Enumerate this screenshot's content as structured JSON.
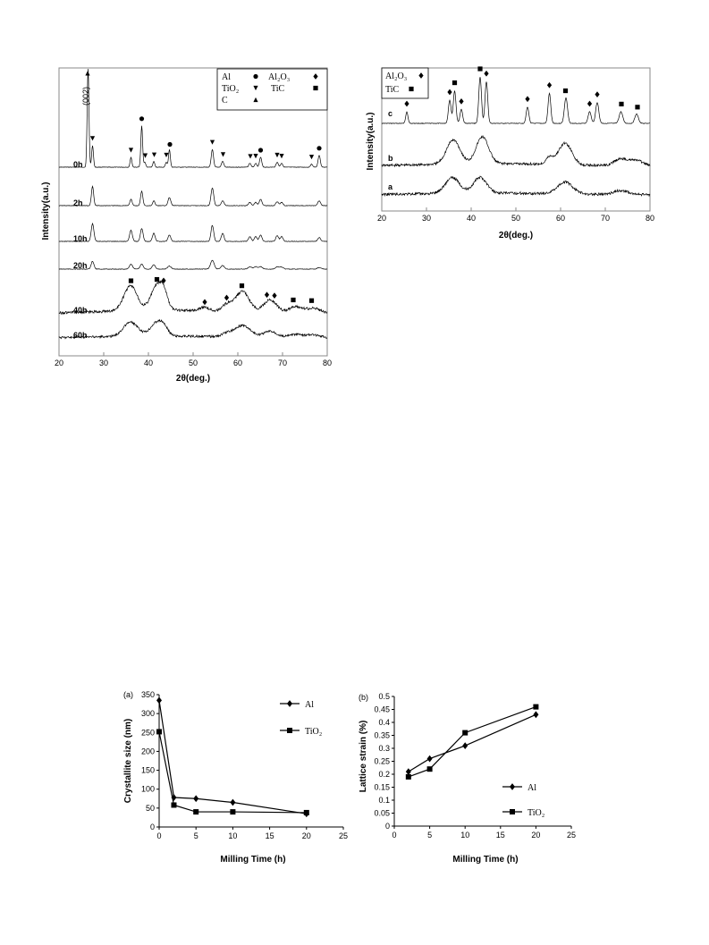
{
  "chart_data": [
    {
      "type": "line",
      "panel": "xrd-milling",
      "xlabel": "2θ(deg.)",
      "ylabel": "Intensity(a.u.)",
      "xlim": [
        20,
        80
      ],
      "xticks": [
        "20",
        "30",
        "40",
        "50",
        "60",
        "70",
        "80"
      ],
      "peak_annotation": "(002)",
      "legend": [
        {
          "label": "Al",
          "marker": "circle"
        },
        {
          "label": "Al₂O₃",
          "marker": "diamond"
        },
        {
          "label": "TiO₂",
          "marker": "triangle-down"
        },
        {
          "label": "TiC",
          "marker": "square"
        },
        {
          "label": "C",
          "marker": "triangle-up"
        }
      ],
      "patterns": [
        {
          "name": "0h",
          "peaks": [
            [
              26.5,
              1.0,
              0.2
            ],
            [
              27.5,
              0.22,
              0.2
            ],
            [
              36.1,
              0.1,
              0.2
            ],
            [
              38.5,
              0.42,
              0.2
            ],
            [
              39.2,
              0.05,
              0.2
            ],
            [
              41.2,
              0.06,
              0.2
            ],
            [
              44.0,
              0.05,
              0.2
            ],
            [
              44.7,
              0.18,
              0.2
            ],
            [
              54.3,
              0.18,
              0.25
            ],
            [
              56.6,
              0.06,
              0.25
            ],
            [
              62.7,
              0.04,
              0.25
            ],
            [
              64.0,
              0.04,
              0.25
            ],
            [
              65.1,
              0.1,
              0.25
            ],
            [
              68.8,
              0.05,
              0.25
            ],
            [
              69.8,
              0.04,
              0.25
            ],
            [
              76.5,
              0.03,
              0.25
            ],
            [
              78.2,
              0.12,
              0.25
            ]
          ],
          "markers": [
            [
              26.4,
              "C"
            ],
            [
              27.5,
              "TiO₂"
            ],
            [
              36.1,
              "TiO₂"
            ],
            [
              38.5,
              "Al"
            ],
            [
              39.3,
              "TiO₂"
            ],
            [
              41.3,
              "TiO₂"
            ],
            [
              44.0,
              "TiO₂"
            ],
            [
              44.8,
              "Al"
            ],
            [
              54.3,
              "TiO₂"
            ],
            [
              56.7,
              "TiO₂"
            ],
            [
              62.8,
              "TiO₂"
            ],
            [
              64.0,
              "TiO₂"
            ],
            [
              65.1,
              "Al"
            ],
            [
              68.8,
              "TiO₂"
            ],
            [
              69.8,
              "TiO₂"
            ],
            [
              76.5,
              "TiO₂"
            ],
            [
              78.2,
              "Al"
            ]
          ]
        },
        {
          "name": "2h",
          "peaks": [
            [
              27.5,
              0.6,
              0.25
            ],
            [
              36.1,
              0.2,
              0.25
            ],
            [
              38.5,
              0.45,
              0.25
            ],
            [
              41.2,
              0.15,
              0.25
            ],
            [
              44.7,
              0.25,
              0.3
            ],
            [
              54.3,
              0.55,
              0.3
            ],
            [
              56.6,
              0.15,
              0.3
            ],
            [
              62.7,
              0.1,
              0.3
            ],
            [
              64.0,
              0.1,
              0.3
            ],
            [
              65.1,
              0.2,
              0.3
            ],
            [
              68.8,
              0.12,
              0.3
            ],
            [
              69.8,
              0.1,
              0.3
            ],
            [
              78.2,
              0.15,
              0.3
            ]
          ]
        },
        {
          "name": "10h",
          "peaks": [
            [
              27.5,
              0.55,
              0.3
            ],
            [
              36.1,
              0.35,
              0.3
            ],
            [
              38.5,
              0.4,
              0.3
            ],
            [
              41.2,
              0.25,
              0.3
            ],
            [
              44.7,
              0.2,
              0.3
            ],
            [
              54.3,
              0.5,
              0.3
            ],
            [
              56.6,
              0.25,
              0.3
            ],
            [
              62.7,
              0.15,
              0.3
            ],
            [
              64.0,
              0.15,
              0.3
            ],
            [
              65.1,
              0.2,
              0.3
            ],
            [
              68.8,
              0.18,
              0.3
            ],
            [
              69.8,
              0.15,
              0.3
            ],
            [
              78.2,
              0.12,
              0.3
            ]
          ]
        },
        {
          "name": "20h",
          "peaks": [
            [
              27.5,
              0.4,
              0.3
            ],
            [
              36.1,
              0.25,
              0.35
            ],
            [
              38.5,
              0.25,
              0.35
            ],
            [
              41.2,
              0.22,
              0.35
            ],
            [
              44.7,
              0.15,
              0.4
            ],
            [
              54.3,
              0.45,
              0.4
            ],
            [
              56.6,
              0.18,
              0.4
            ],
            [
              62.7,
              0.12,
              0.4
            ],
            [
              64.0,
              0.12,
              0.4
            ],
            [
              65.1,
              0.12,
              0.4
            ],
            [
              68.8,
              0.12,
              0.4
            ],
            [
              69.8,
              0.1,
              0.4
            ],
            [
              78.2,
              0.08,
              0.4
            ]
          ]
        },
        {
          "name": "40h",
          "peaks": [
            [
              36.0,
              1.0,
              1.5
            ],
            [
              42.0,
              1.0,
              1.4
            ],
            [
              43.5,
              0.4,
              0.8
            ],
            [
              52.5,
              0.15,
              1.0
            ],
            [
              57.5,
              0.25,
              1.0
            ],
            [
              61.0,
              0.8,
              1.6
            ],
            [
              66.5,
              0.3,
              1.2
            ],
            [
              68.0,
              0.3,
              1.2
            ],
            [
              73.0,
              0.25,
              1.5
            ],
            [
              77.0,
              0.2,
              1.5
            ]
          ],
          "markers": [
            [
              36.1,
              "TiC"
            ],
            [
              41.9,
              "TiC"
            ],
            [
              43.4,
              "Al₂O₃"
            ],
            [
              52.6,
              "Al₂O₃"
            ],
            [
              57.5,
              "Al₂O₃"
            ],
            [
              60.9,
              "TiC"
            ],
            [
              66.5,
              "Al₂O₃"
            ],
            [
              68.2,
              "Al₂O₃"
            ],
            [
              72.4,
              "TiC"
            ],
            [
              76.5,
              "TiC"
            ]
          ]
        },
        {
          "name": "60h",
          "peaks": [
            [
              36.0,
              1.0,
              1.6
            ],
            [
              42.0,
              1.0,
              1.5
            ],
            [
              43.5,
              0.3,
              0.8
            ],
            [
              57.5,
              0.2,
              1.0
            ],
            [
              61.0,
              0.8,
              1.8
            ],
            [
              66.5,
              0.25,
              1.2
            ],
            [
              68.0,
              0.25,
              1.2
            ],
            [
              73.0,
              0.2,
              1.6
            ],
            [
              77.0,
              0.18,
              1.6
            ]
          ]
        }
      ]
    },
    {
      "type": "line",
      "panel": "xrd-comparison",
      "xlabel": "2θ(deg.)",
      "ylabel": "Intensity(a.u.)",
      "xlim": [
        20,
        80
      ],
      "xticks": [
        "20",
        "30",
        "40",
        "50",
        "60",
        "70",
        "80"
      ],
      "legend": [
        {
          "label": "Al₂O₃",
          "marker": "diamond"
        },
        {
          "label": "TiC",
          "marker": "square"
        }
      ],
      "patterns": [
        {
          "name": "c",
          "peaks": [
            [
              25.6,
              0.25,
              0.25
            ],
            [
              35.2,
              0.5,
              0.3
            ],
            [
              36.3,
              0.7,
              0.3
            ],
            [
              37.8,
              0.3,
              0.3
            ],
            [
              42.0,
              1.0,
              0.3
            ],
            [
              43.4,
              0.9,
              0.3
            ],
            [
              52.6,
              0.35,
              0.3
            ],
            [
              57.5,
              0.65,
              0.3
            ],
            [
              61.2,
              0.55,
              0.35
            ],
            [
              66.5,
              0.25,
              0.35
            ],
            [
              68.2,
              0.45,
              0.35
            ],
            [
              73.5,
              0.25,
              0.4
            ],
            [
              77.0,
              0.2,
              0.4
            ]
          ],
          "markers": [
            [
              25.6,
              "Al₂O₃"
            ],
            [
              35.2,
              "Al₂O₃"
            ],
            [
              36.3,
              "TiC"
            ],
            [
              37.8,
              "Al₂O₃"
            ],
            [
              42.0,
              "TiC"
            ],
            [
              43.4,
              "Al₂O₃"
            ],
            [
              52.6,
              "Al₂O₃"
            ],
            [
              57.5,
              "Al₂O₃"
            ],
            [
              61.1,
              "TiC"
            ],
            [
              66.5,
              "Al₂O₃"
            ],
            [
              68.2,
              "Al₂O₃"
            ],
            [
              73.6,
              "TiC"
            ],
            [
              77.2,
              "TiC"
            ]
          ]
        },
        {
          "name": "b",
          "peaks": [
            [
              36.0,
              0.9,
              1.5
            ],
            [
              42.5,
              1.0,
              1.4
            ],
            [
              57.5,
              0.25,
              0.8
            ],
            [
              61.0,
              0.8,
              1.5
            ],
            [
              73.5,
              0.25,
              1.5
            ],
            [
              77.0,
              0.2,
              1.5
            ]
          ]
        },
        {
          "name": "a",
          "peaks": [
            [
              35.8,
              0.8,
              1.6
            ],
            [
              42.0,
              0.8,
              1.5
            ],
            [
              61.0,
              0.6,
              1.7
            ],
            [
              73.5,
              0.2,
              1.6
            ]
          ]
        }
      ]
    },
    {
      "type": "line",
      "panel": "(a)",
      "xlabel": "Milling Time (h)",
      "ylabel": "Crystallite size (nm)",
      "xlim": [
        0,
        25
      ],
      "ylim": [
        0,
        350
      ],
      "xticks": [
        "0",
        "5",
        "10",
        "15",
        "20",
        "25"
      ],
      "yticks": [
        "0",
        "50",
        "100",
        "150",
        "200",
        "250",
        "300",
        "350"
      ],
      "categories": [
        0,
        2,
        5,
        10,
        20
      ],
      "series": [
        {
          "name": "Al",
          "marker": "diamond",
          "values": [
            335,
            78,
            75,
            65,
            35
          ]
        },
        {
          "name": "TiO₂",
          "marker": "square",
          "values": [
            252,
            58,
            40,
            40,
            38
          ]
        }
      ]
    },
    {
      "type": "line",
      "panel": "(b)",
      "xlabel": "Milling Time (h)",
      "ylabel": "Lattice strain (%)",
      "xlim": [
        0,
        25
      ],
      "ylim": [
        0,
        0.5
      ],
      "xticks": [
        "0",
        "5",
        "10",
        "15",
        "20",
        "25"
      ],
      "yticks": [
        "0",
        "0.05",
        "0.1",
        "0.15",
        "0.2",
        "0.25",
        "0.3",
        "0.35",
        "0.4",
        "0.45",
        "0.5"
      ],
      "categories": [
        2,
        5,
        10,
        20
      ],
      "series": [
        {
          "name": "Al",
          "marker": "diamond",
          "values": [
            0.21,
            0.26,
            0.31,
            0.43
          ]
        },
        {
          "name": "TiO₂",
          "marker": "square",
          "values": [
            0.19,
            0.22,
            0.36,
            0.46
          ]
        }
      ]
    }
  ]
}
